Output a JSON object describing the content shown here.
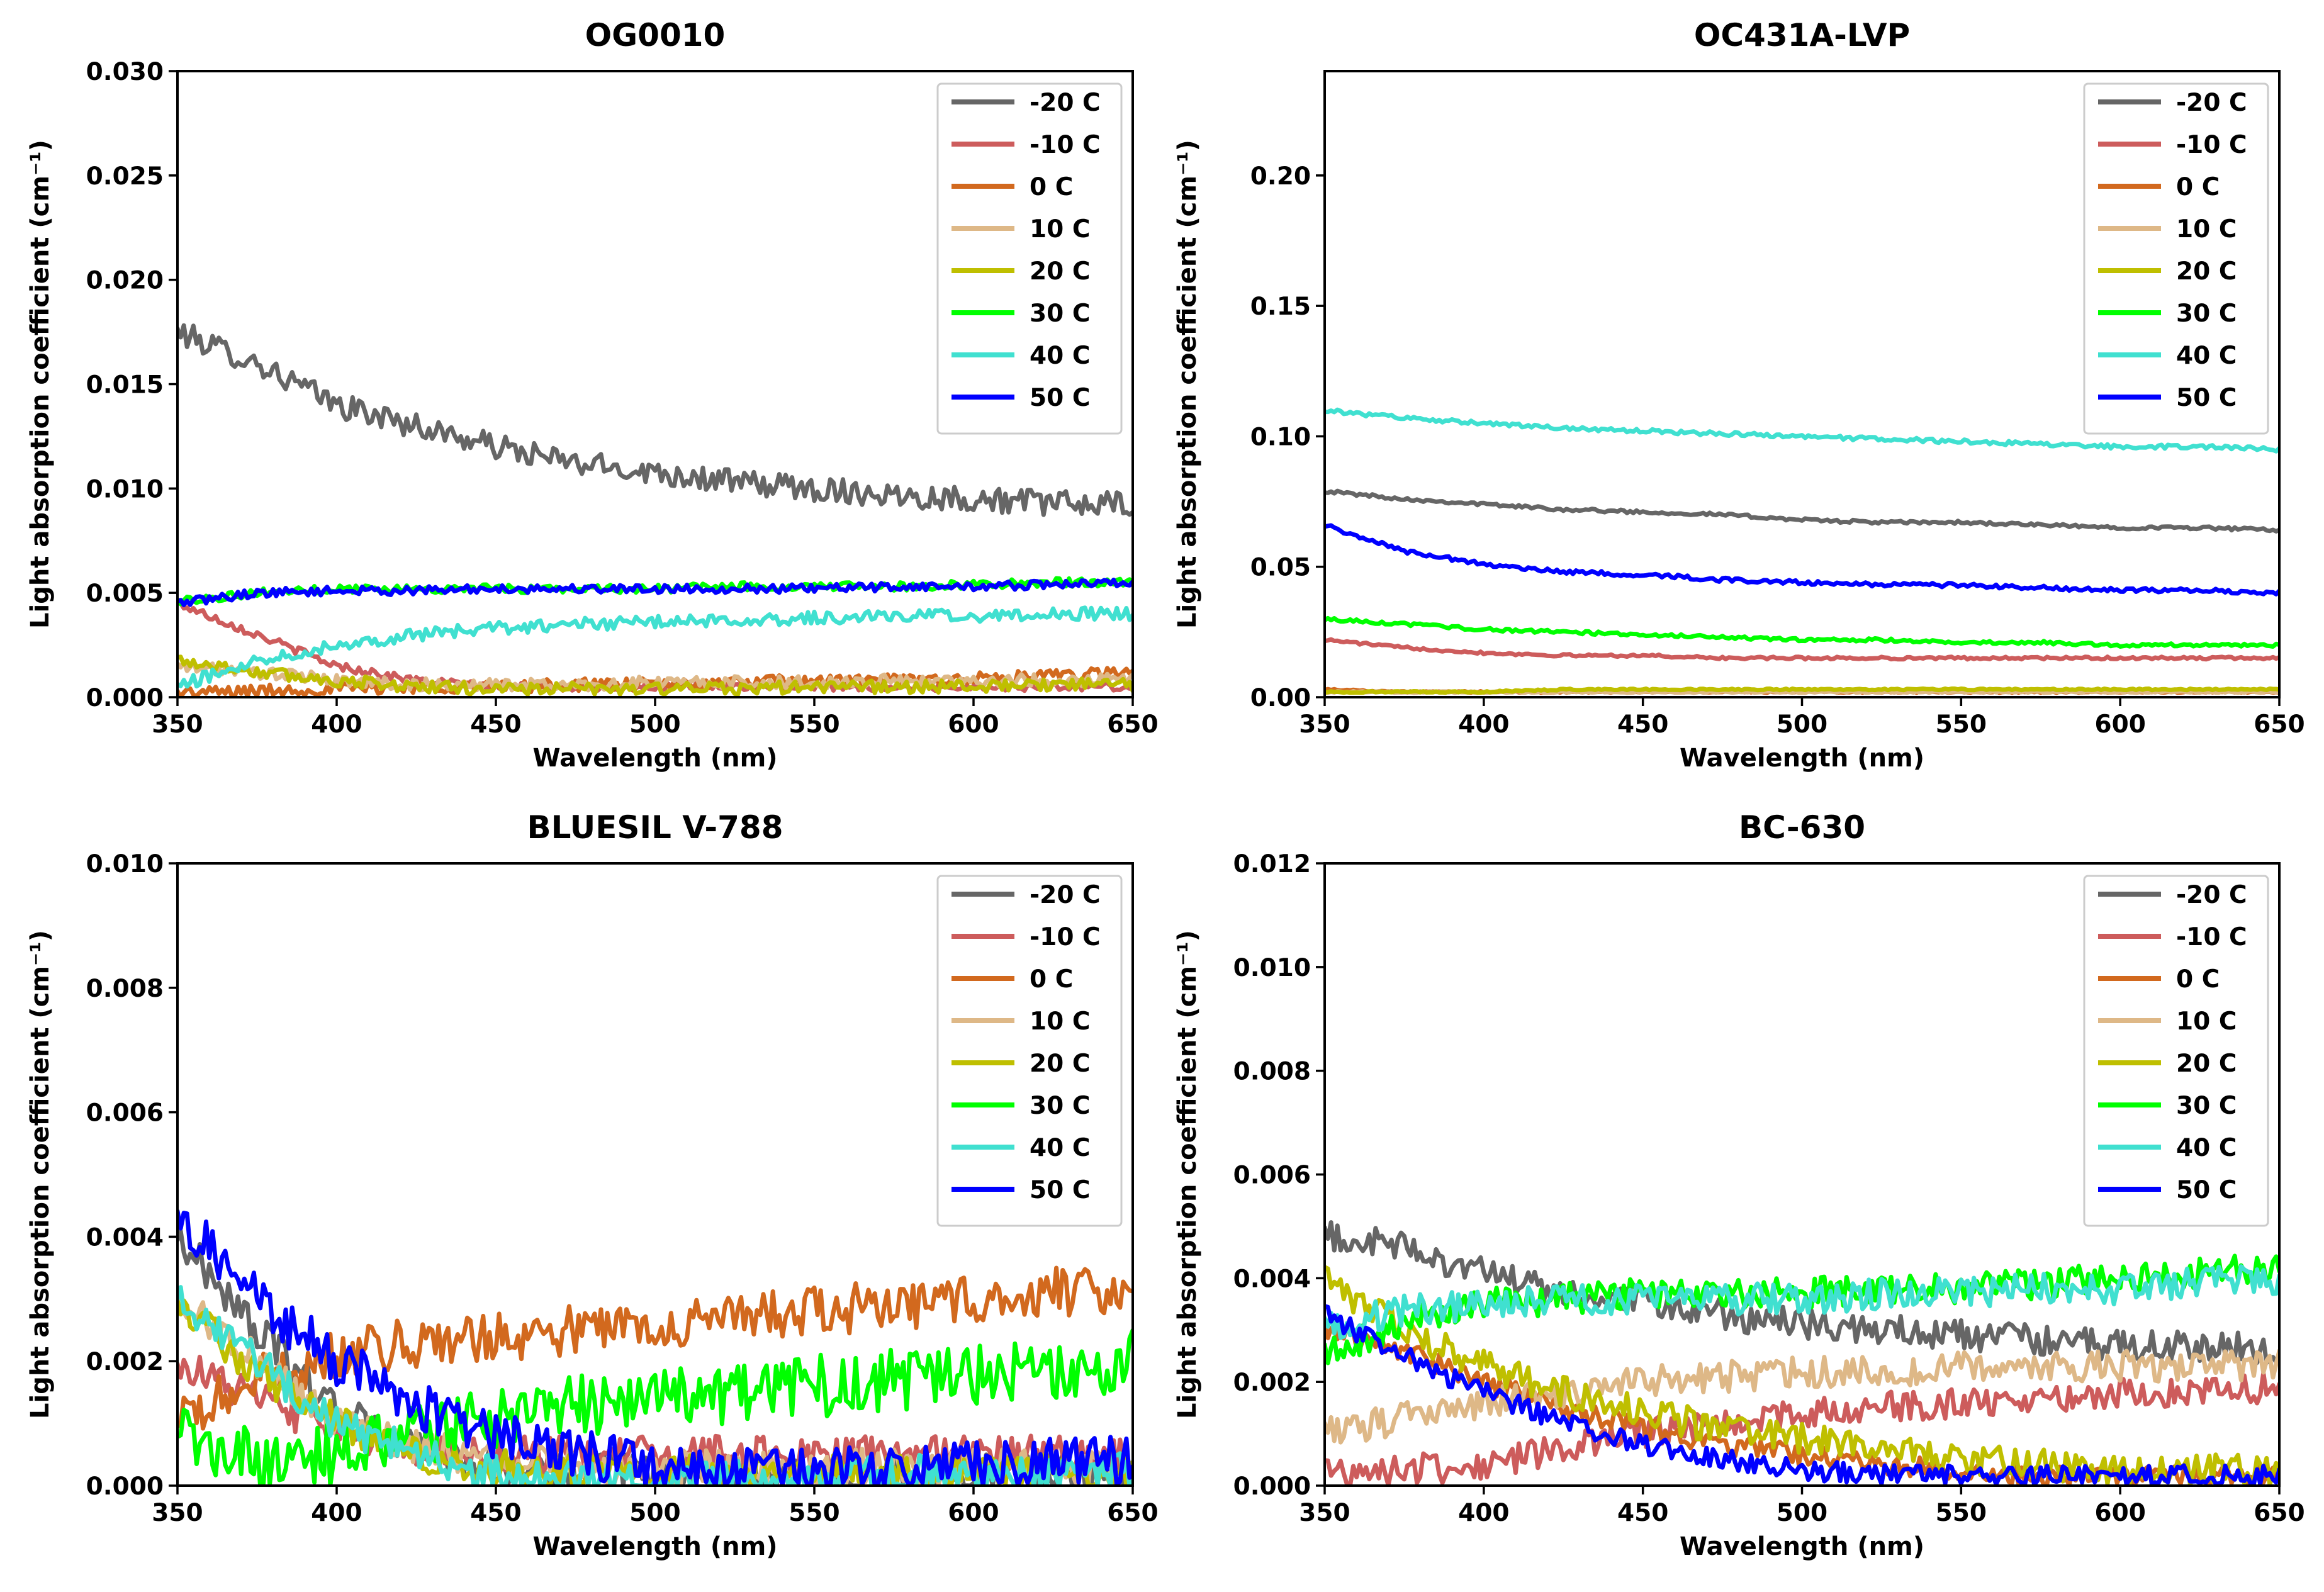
{
  "chart_data": [
    {
      "type": "line",
      "title": "OG0010",
      "xlabel": "Wavelength (nm)",
      "ylabel": "Light absorption coefficient (cm⁻¹)",
      "xlim": [
        350,
        650
      ],
      "ylim": [
        0,
        0.03
      ],
      "xticks": [
        "350",
        "400",
        "450",
        "500",
        "550",
        "600",
        "650"
      ],
      "yticks": [
        "0.000",
        "0.005",
        "0.010",
        "0.015",
        "0.020",
        "0.025",
        "0.030"
      ],
      "x": [
        350,
        375,
        400,
        425,
        450,
        475,
        500,
        525,
        550,
        575,
        600,
        625,
        650
      ],
      "series": [
        {
          "name": "-20 C",
          "color": "#666666",
          "noise": 0.0006,
          "values": [
            0.0175,
            0.016,
            0.014,
            0.013,
            0.012,
            0.0112,
            0.0108,
            0.0103,
            0.01,
            0.0097,
            0.0095,
            0.0093,
            0.0092
          ]
        },
        {
          "name": "-10 C",
          "color": "#cd5c5c",
          "noise": 0.0002,
          "values": [
            0.0045,
            0.003,
            0.0015,
            0.0008,
            0.0005,
            0.0005,
            0.0005,
            0.0005,
            0.0005,
            0.0005,
            0.0005,
            0.0005,
            0.0005
          ]
        },
        {
          "name": "0 C",
          "color": "#d2691e",
          "noise": 0.0003,
          "values": [
            0.0002,
            0.0003,
            0.0004,
            0.0005,
            0.0005,
            0.0006,
            0.0006,
            0.0007,
            0.0008,
            0.0008,
            0.0009,
            0.001,
            0.0012
          ]
        },
        {
          "name": "10 C",
          "color": "#deb887",
          "noise": 0.0003,
          "values": [
            0.0015,
            0.0012,
            0.0008,
            0.0006,
            0.0006,
            0.0006,
            0.0007,
            0.0007,
            0.0007,
            0.0008,
            0.0008,
            0.0008,
            0.0009
          ]
        },
        {
          "name": "20 C",
          "color": "#bfbf00",
          "noise": 0.0003,
          "values": [
            0.0018,
            0.0012,
            0.0008,
            0.0005,
            0.0004,
            0.0004,
            0.0004,
            0.0004,
            0.0005,
            0.0005,
            0.0005,
            0.0006,
            0.0006
          ]
        },
        {
          "name": "30 C",
          "color": "#00ff00",
          "noise": 0.0002,
          "values": [
            0.0046,
            0.005,
            0.0052,
            0.0052,
            0.0052,
            0.0052,
            0.0052,
            0.0053,
            0.0053,
            0.0053,
            0.0054,
            0.0055,
            0.0055
          ]
        },
        {
          "name": "40 C",
          "color": "#40e0d0",
          "noise": 0.0003,
          "values": [
            0.0005,
            0.0018,
            0.0025,
            0.003,
            0.0033,
            0.0035,
            0.0036,
            0.0037,
            0.0038,
            0.0039,
            0.0039,
            0.004,
            0.004
          ]
        },
        {
          "name": "50 C",
          "color": "#0000ff",
          "noise": 0.0002,
          "values": [
            0.0045,
            0.005,
            0.0051,
            0.0051,
            0.0052,
            0.0052,
            0.0052,
            0.0052,
            0.0052,
            0.0053,
            0.0053,
            0.0054,
            0.0055
          ]
        }
      ]
    },
    {
      "type": "line",
      "title": "OC431A-LVP",
      "xlabel": "Wavelength (nm)",
      "ylabel": "Light absorption coefficient (cm⁻¹)",
      "xlim": [
        350,
        650
      ],
      "ylim": [
        0,
        0.24
      ],
      "xticks": [
        "350",
        "400",
        "450",
        "500",
        "550",
        "600",
        "650"
      ],
      "yticks": [
        "0.00",
        "0.05",
        "0.10",
        "0.15",
        "0.20"
      ],
      "x": [
        350,
        375,
        400,
        425,
        450,
        475,
        500,
        525,
        550,
        575,
        600,
        625,
        650
      ],
      "series": [
        {
          "name": "-20 C",
          "color": "#666666",
          "noise": 0.0006,
          "values": [
            0.079,
            0.076,
            0.074,
            0.072,
            0.071,
            0.07,
            0.068,
            0.067,
            0.067,
            0.066,
            0.065,
            0.065,
            0.064
          ]
        },
        {
          "name": "-10 C",
          "color": "#cd5c5c",
          "noise": 0.0005,
          "values": [
            0.022,
            0.019,
            0.017,
            0.016,
            0.016,
            0.015,
            0.015,
            0.015,
            0.015,
            0.015,
            0.015,
            0.015,
            0.015
          ]
        },
        {
          "name": "0 C",
          "color": "#d2691e",
          "noise": 0.0003,
          "values": [
            0.003,
            0.002,
            0.002,
            0.002,
            0.002,
            0.002,
            0.002,
            0.002,
            0.002,
            0.002,
            0.002,
            0.002,
            0.002
          ]
        },
        {
          "name": "10 C",
          "color": "#deb887",
          "noise": 0.0003,
          "values": [
            0.002,
            0.002,
            0.002,
            0.002,
            0.002,
            0.002,
            0.002,
            0.002,
            0.002,
            0.002,
            0.002,
            0.002,
            0.002
          ]
        },
        {
          "name": "20 C",
          "color": "#bfbf00",
          "noise": 0.0003,
          "values": [
            0.002,
            0.002,
            0.002,
            0.003,
            0.003,
            0.003,
            0.003,
            0.003,
            0.003,
            0.003,
            0.003,
            0.003,
            0.003
          ]
        },
        {
          "name": "30 C",
          "color": "#00ff00",
          "noise": 0.0006,
          "values": [
            0.03,
            0.028,
            0.026,
            0.025,
            0.024,
            0.023,
            0.022,
            0.022,
            0.021,
            0.021,
            0.02,
            0.02,
            0.02
          ]
        },
        {
          "name": "40 C",
          "color": "#40e0d0",
          "noise": 0.0008,
          "values": [
            0.11,
            0.107,
            0.105,
            0.103,
            0.102,
            0.101,
            0.1,
            0.099,
            0.098,
            0.097,
            0.096,
            0.096,
            0.095
          ]
        },
        {
          "name": "50 C",
          "color": "#0000ff",
          "noise": 0.0008,
          "values": [
            0.066,
            0.056,
            0.051,
            0.048,
            0.047,
            0.045,
            0.044,
            0.043,
            0.043,
            0.042,
            0.041,
            0.041,
            0.04
          ]
        }
      ]
    },
    {
      "type": "line",
      "title": "BLUESIL V-788",
      "xlabel": "Wavelength (nm)",
      "ylabel": "Light absorption coefficient (cm⁻¹)",
      "xlim": [
        350,
        650
      ],
      "ylim": [
        0,
        0.01
      ],
      "xticks": [
        "350",
        "400",
        "450",
        "500",
        "550",
        "600",
        "650"
      ],
      "yticks": [
        "0.000",
        "0.002",
        "0.004",
        "0.006",
        "0.008",
        "0.010"
      ],
      "x": [
        350,
        375,
        400,
        425,
        450,
        475,
        500,
        525,
        550,
        575,
        600,
        625,
        650
      ],
      "series": [
        {
          "name": "-20 C",
          "color": "#666666",
          "noise": 0.0003,
          "values": [
            0.004,
            0.0025,
            0.0012,
            0.0006,
            0.0003,
            0.0002,
            0.0002,
            0.0002,
            0.0002,
            0.0002,
            0.0002,
            0.0002,
            0.0002
          ]
        },
        {
          "name": "-10 C",
          "color": "#cd5c5c",
          "noise": 0.0003,
          "values": [
            0.002,
            0.0014,
            0.0009,
            0.0006,
            0.0005,
            0.0005,
            0.0005,
            0.0005,
            0.0005,
            0.0005,
            0.0005,
            0.0005,
            0.0005
          ]
        },
        {
          "name": "0 C",
          "color": "#d2691e",
          "noise": 0.0004,
          "values": [
            0.001,
            0.0017,
            0.0021,
            0.0023,
            0.0024,
            0.0025,
            0.0026,
            0.0027,
            0.0028,
            0.0029,
            0.003,
            0.0031,
            0.0032
          ]
        },
        {
          "name": "10 C",
          "color": "#deb887",
          "noise": 0.0003,
          "values": [
            0.003,
            0.002,
            0.001,
            0.0006,
            0.0004,
            0.0003,
            0.0003,
            0.0003,
            0.0003,
            0.0003,
            0.0003,
            0.0003,
            0.0003
          ]
        },
        {
          "name": "20 C",
          "color": "#bfbf00",
          "noise": 0.0003,
          "values": [
            0.003,
            0.0018,
            0.001,
            0.0005,
            0.0003,
            0.0002,
            0.0002,
            0.0002,
            0.0002,
            0.0002,
            0.0002,
            0.0002,
            0.0002
          ]
        },
        {
          "name": "30 C",
          "color": "#00ff00",
          "noise": 0.0005,
          "values": [
            0.0008,
            0.0004,
            0.0005,
            0.0008,
            0.0011,
            0.0013,
            0.0014,
            0.0015,
            0.0016,
            0.0017,
            0.0018,
            0.0019,
            0.002
          ]
        },
        {
          "name": "40 C",
          "color": "#40e0d0",
          "noise": 0.0003,
          "values": [
            0.003,
            0.002,
            0.001,
            0.0005,
            0.0002,
            0.0001,
            0.0001,
            0.0001,
            0.0001,
            0.0002,
            0.0002,
            0.0002,
            0.0003
          ]
        },
        {
          "name": "50 C",
          "color": "#0000ff",
          "noise": 0.0004,
          "values": [
            0.0044,
            0.003,
            0.002,
            0.0013,
            0.0008,
            0.0005,
            0.0003,
            0.0002,
            0.0002,
            0.0003,
            0.0003,
            0.0004,
            0.0004
          ]
        }
      ]
    },
    {
      "type": "line",
      "title": "BC-630",
      "xlabel": "Wavelength (nm)",
      "ylabel": "Light absorption coefficient (cm⁻¹)",
      "xlim": [
        350,
        650
      ],
      "ylim": [
        0,
        0.012
      ],
      "xticks": [
        "350",
        "400",
        "450",
        "500",
        "550",
        "600",
        "650"
      ],
      "yticks": [
        "0.000",
        "0.002",
        "0.004",
        "0.006",
        "0.008",
        "0.010",
        "0.012"
      ],
      "x": [
        350,
        375,
        400,
        425,
        450,
        475,
        500,
        525,
        550,
        575,
        600,
        625,
        650
      ],
      "series": [
        {
          "name": "-20 C",
          "color": "#666666",
          "noise": 0.0003,
          "values": [
            0.0048,
            0.0046,
            0.0041,
            0.0037,
            0.0035,
            0.0033,
            0.0031,
            0.003,
            0.0029,
            0.0028,
            0.0027,
            0.0027,
            0.0026
          ]
        },
        {
          "name": "-10 C",
          "color": "#cd5c5c",
          "noise": 0.0003,
          "values": [
            0.0003,
            0.0003,
            0.0004,
            0.0007,
            0.001,
            0.0012,
            0.0014,
            0.0015,
            0.0016,
            0.0017,
            0.0018,
            0.0018,
            0.0019
          ]
        },
        {
          "name": "0 C",
          "color": "#d2691e",
          "noise": 0.0002,
          "values": [
            0.003,
            0.0026,
            0.002,
            0.0015,
            0.0011,
            0.0008,
            0.0006,
            0.0004,
            0.0003,
            0.0002,
            0.0002,
            0.0002,
            0.0002
          ]
        },
        {
          "name": "10 C",
          "color": "#deb887",
          "noise": 0.0003,
          "values": [
            0.001,
            0.0013,
            0.0016,
            0.0018,
            0.002,
            0.0021,
            0.0022,
            0.0022,
            0.0023,
            0.0023,
            0.0023,
            0.0023,
            0.0023
          ]
        },
        {
          "name": "20 C",
          "color": "#bfbf00",
          "noise": 0.0003,
          "values": [
            0.004,
            0.003,
            0.0023,
            0.0018,
            0.0014,
            0.0011,
            0.0009,
            0.0007,
            0.0005,
            0.0004,
            0.0003,
            0.0003,
            0.0003
          ]
        },
        {
          "name": "30 C",
          "color": "#00ff00",
          "noise": 0.0003,
          "values": [
            0.0025,
            0.0032,
            0.0035,
            0.0036,
            0.0037,
            0.0037,
            0.0037,
            0.0038,
            0.0038,
            0.0039,
            0.004,
            0.0041,
            0.0042
          ]
        },
        {
          "name": "40 C",
          "color": "#40e0d0",
          "noise": 0.0003,
          "values": [
            0.003,
            0.0034,
            0.0035,
            0.0036,
            0.0036,
            0.0036,
            0.0036,
            0.0037,
            0.0037,
            0.0038,
            0.0038,
            0.0039,
            0.004
          ]
        },
        {
          "name": "50 C",
          "color": "#0000ff",
          "noise": 0.0002,
          "values": [
            0.0033,
            0.0025,
            0.0018,
            0.0012,
            0.0008,
            0.0005,
            0.0003,
            0.0002,
            0.0002,
            0.0002,
            0.0002,
            0.0002,
            0.0002
          ]
        }
      ]
    }
  ]
}
